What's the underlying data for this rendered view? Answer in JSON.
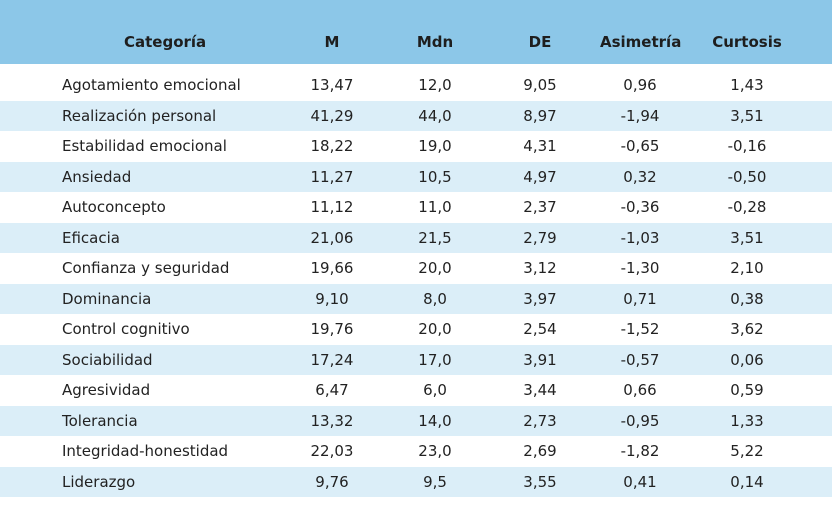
{
  "headers": {
    "categoria": "Categoría",
    "m": "M",
    "mdn": "Mdn",
    "de": "DE",
    "asimetria": "Asimetría",
    "curtosis": "Curtosis"
  },
  "rows": [
    {
      "cat": "Agotamiento emocional",
      "m": "13,47",
      "mdn": "12,0",
      "de": "9,05",
      "asim": "0,96",
      "curt": "1,43"
    },
    {
      "cat": "Realización personal",
      "m": "41,29",
      "mdn": "44,0",
      "de": "8,97",
      "asim": "-1,94",
      "curt": "3,51"
    },
    {
      "cat": "Estabilidad emocional",
      "m": "18,22",
      "mdn": "19,0",
      "de": "4,31",
      "asim": "-0,65",
      "curt": "-0,16"
    },
    {
      "cat": "Ansiedad",
      "m": "11,27",
      "mdn": "10,5",
      "de": "4,97",
      "asim": "0,32",
      "curt": "-0,50"
    },
    {
      "cat": "Autoconcepto",
      "m": "11,12",
      "mdn": "11,0",
      "de": "2,37",
      "asim": "-0,36",
      "curt": "-0,28"
    },
    {
      "cat": "Eficacia",
      "m": "21,06",
      "mdn": "21,5",
      "de": "2,79",
      "asim": "-1,03",
      "curt": "3,51"
    },
    {
      "cat": "Confianza y seguridad",
      "m": "19,66",
      "mdn": "20,0",
      "de": "3,12",
      "asim": "-1,30",
      "curt": "2,10"
    },
    {
      "cat": "Dominancia",
      "m": "9,10",
      "mdn": "8,0",
      "de": "3,97",
      "asim": "0,71",
      "curt": "0,38"
    },
    {
      "cat": "Control cognitivo",
      "m": "19,76",
      "mdn": "20,0",
      "de": "2,54",
      "asim": "-1,52",
      "curt": "3,62"
    },
    {
      "cat": "Sociabilidad",
      "m": "17,24",
      "mdn": "17,0",
      "de": "3,91",
      "asim": "-0,57",
      "curt": "0,06"
    },
    {
      "cat": "Agresividad",
      "m": "6,47",
      "mdn": "6,0",
      "de": "3,44",
      "asim": "0,66",
      "curt": "0,59"
    },
    {
      "cat": "Tolerancia",
      "m": "13,32",
      "mdn": "14,0",
      "de": "2,73",
      "asim": "-0,95",
      "curt": "1,33"
    },
    {
      "cat": "Integridad-honestidad",
      "m": "22,03",
      "mdn": "23,0",
      "de": "2,69",
      "asim": "-1,82",
      "curt": "5,22"
    },
    {
      "cat": "Liderazgo",
      "m": "9,76",
      "mdn": "9,5",
      "de": "3,55",
      "asim": "0,41",
      "curt": "0,14"
    }
  ],
  "colors": {
    "header_bg": "#8cc7e8",
    "stripe_bg": "#dbeef8",
    "plain_bg": "#ffffff"
  }
}
